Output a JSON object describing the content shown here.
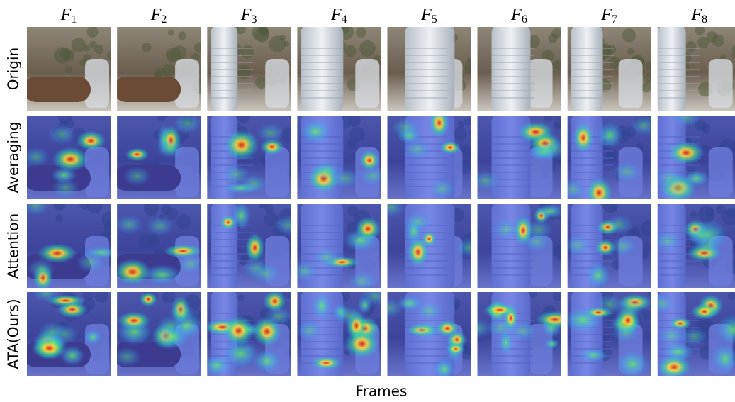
{
  "columns": [
    {
      "symbol": "F",
      "subscript": "1"
    },
    {
      "symbol": "F",
      "subscript": "2"
    },
    {
      "symbol": "F",
      "subscript": "3"
    },
    {
      "symbol": "F",
      "subscript": "4"
    },
    {
      "symbol": "F",
      "subscript": "5"
    },
    {
      "symbol": "F",
      "subscript": "6"
    },
    {
      "symbol": "F",
      "subscript": "7"
    },
    {
      "symbol": "F",
      "subscript": "8"
    }
  ],
  "rows": [
    "Origin",
    "Averaging",
    "Attention",
    "ATA(Ours)"
  ],
  "xlabel": "Frames"
}
